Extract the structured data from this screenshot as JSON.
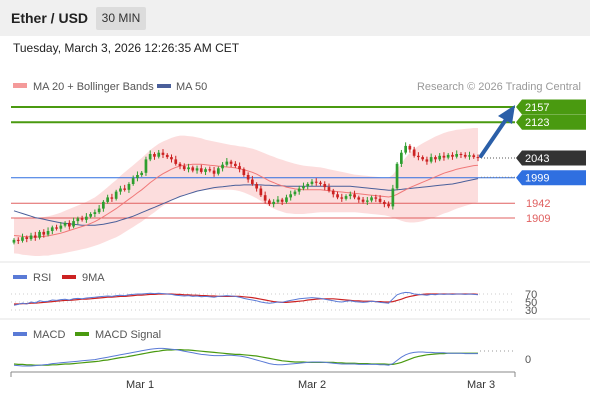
{
  "header": {
    "title": "Ether / USD",
    "timeframe": "30 MIN"
  },
  "datetime": "Tuesday, March 3, 2026 12:26:35 AM CET",
  "legend": {
    "ma20": "MA 20 + Bollinger Bands",
    "ma50": "MA 50",
    "copyright": "Research © 2026 Trading Central"
  },
  "colors": {
    "up": "#2e9e2e",
    "down": "#cc2222",
    "band": "#fbd2d2",
    "ma20": "#f07878",
    "ma50": "#4a5f9a",
    "resistance": "#4a9a10",
    "support_blue": "#2f6fe0",
    "support_red": "#e06060",
    "current": "#333333",
    "arrow": "#2b5fa8"
  },
  "levels": [
    {
      "value": 2157,
      "label": "2157",
      "kind": "resistance"
    },
    {
      "value": 2123,
      "label": "2123",
      "kind": "resistance"
    },
    {
      "value": 2043,
      "label": "2043",
      "kind": "current"
    },
    {
      "value": 1999,
      "label": "1999",
      "kind": "support_blue"
    },
    {
      "value": 1942,
      "label": "1942",
      "kind": "support_red"
    },
    {
      "value": 1909,
      "label": "1909",
      "kind": "support_red"
    }
  ],
  "rsi": {
    "label": "RSI",
    "ma_label": "9MA",
    "levels": [
      "70",
      "50",
      "30"
    ]
  },
  "macd": {
    "label": "MACD",
    "signal_label": "MACD Signal",
    "zero_label": "0"
  },
  "chart_data": {
    "type": "candlestick",
    "x_labels": [
      "Mar 1",
      "Mar 2",
      "Mar 3"
    ],
    "ylim": [
      1840,
      2180
    ],
    "close": [
      1860,
      1858,
      1866,
      1862,
      1870,
      1865,
      1878,
      1872,
      1880,
      1888,
      1885,
      1892,
      1898,
      1890,
      1902,
      1908,
      1905,
      1912,
      1918,
      1922,
      1930,
      1945,
      1955,
      1952,
      1968,
      1975,
      1972,
      1985,
      1998,
      2005,
      2010,
      2040,
      2052,
      2046,
      2055,
      2050,
      2045,
      2040,
      2030,
      2025,
      2018,
      2022,
      2015,
      2020,
      2012,
      2018,
      2015,
      2008,
      2020,
      2028,
      2035,
      2030,
      2025,
      2018,
      2005,
      1995,
      1985,
      1975,
      1960,
      1948,
      1940,
      1945,
      1950,
      1945,
      1955,
      1962,
      1968,
      1975,
      1980,
      1985,
      1990,
      1988,
      1985,
      1978,
      1970,
      1962,
      1955,
      1952,
      1958,
      1962,
      1955,
      1950,
      1945,
      1948,
      1955,
      1952,
      1945,
      1940,
      1935,
      1975,
      2030,
      2055,
      2070,
      2062,
      2048,
      2045,
      2040,
      2035,
      2045,
      2040,
      2048,
      2044,
      2050,
      2046,
      2052,
      2050,
      2046,
      2049,
      2045,
      2043
    ],
    "ma20": [
      1870,
      1869,
      1868,
      1867,
      1867,
      1866,
      1867,
      1868,
      1869,
      1871,
      1873,
      1875,
      1878,
      1881,
      1884,
      1887,
      1890,
      1893,
      1897,
      1901,
      1906,
      1912,
      1918,
      1924,
      1930,
      1937,
      1944,
      1951,
      1958,
      1965,
      1972,
      1980,
      1988,
      1995,
      2002,
      2008,
      2013,
      2018,
      2022,
      2025,
      2027,
      2028,
      2029,
      2029,
      2029,
      2028,
      2027,
      2026,
      2025,
      2024,
      2023,
      2022,
      2021,
      2019,
      2017,
      2014,
      2011,
      2007,
      2002,
      1997,
      1992,
      1988,
      1984,
      1981,
      1978,
      1976,
      1974,
      1973,
      1972,
      1972,
      1972,
      1972,
      1972,
      1971,
      1970,
      1969,
      1968,
      1967,
      1966,
      1965,
      1964,
      1963,
      1962,
      1961,
      1960,
      1959,
      1958,
      1957,
      1956,
      1958,
      1962,
      1967,
      1972,
      1977,
      1981,
      1985,
      1989,
      1993,
      1997,
      2001,
      2005,
      2009,
      2012,
      2015,
      2018,
      2020,
      2022,
      2024,
      2026,
      2027
    ],
    "ma50": [
      1925,
      1922,
      1919,
      1916,
      1913,
      1910,
      1908,
      1906,
      1904,
      1902,
      1900,
      1898,
      1897,
      1896,
      1895,
      1894,
      1893,
      1893,
      1893,
      1893,
      1894,
      1895,
      1897,
      1899,
      1901,
      1904,
      1907,
      1910,
      1913,
      1917,
      1921,
      1925,
      1929,
      1933,
      1937,
      1941,
      1945,
      1949,
      1953,
      1957,
      1960,
      1963,
      1966,
      1969,
      1971,
      1973,
      1975,
      1977,
      1978,
      1979,
      1980,
      1981,
      1982,
      1982,
      1983,
      1983,
      1983,
      1983,
      1983,
      1982,
      1982,
      1981,
      1981,
      1981,
      1980,
      1980,
      1980,
      1980,
      1980,
      1980,
      1980,
      1980,
      1980,
      1980,
      1980,
      1980,
      1980,
      1980,
      1980,
      1980,
      1979,
      1978,
      1977,
      1976,
      1975,
      1974,
      1973,
      1972,
      1971,
      1971,
      1972,
      1973,
      1974,
      1975,
      1976,
      1977,
      1978,
      1979,
      1980,
      1981,
      1982,
      1983,
      1984,
      1985,
      1987,
      1989,
      1991,
      1993,
      1995,
      1997
    ],
    "bb_width": [
      40,
      40,
      41,
      41,
      42,
      42,
      43,
      43,
      44,
      44,
      45,
      46,
      47,
      48,
      49,
      50,
      51,
      52,
      53,
      54,
      56,
      58,
      60,
      62,
      64,
      66,
      67,
      68,
      69,
      70,
      71,
      72,
      73,
      73,
      73,
      72,
      71,
      70,
      69,
      68,
      66,
      64,
      62,
      60,
      58,
      56,
      55,
      54,
      53,
      52,
      51,
      50,
      50,
      50,
      51,
      52,
      53,
      54,
      55,
      56,
      57,
      58,
      58,
      58,
      58,
      57,
      56,
      55,
      54,
      53,
      52,
      51,
      50,
      49,
      48,
      47,
      46,
      45,
      44,
      43,
      42,
      42,
      42,
      42,
      42,
      42,
      42,
      42,
      43,
      48,
      56,
      64,
      72,
      78,
      82,
      85,
      87,
      88,
      89,
      90,
      90,
      90,
      90,
      89,
      88,
      87,
      86,
      85,
      84,
      83
    ],
    "rsi": [
      42,
      44,
      47,
      45,
      50,
      48,
      53,
      51,
      52,
      55,
      54,
      56,
      57,
      55,
      58,
      59,
      58,
      60,
      61,
      62,
      63,
      64,
      65,
      64,
      66,
      67,
      66,
      68,
      69,
      70,
      70,
      71,
      72,
      71,
      72,
      71,
      70,
      69,
      67,
      66,
      65,
      66,
      64,
      65,
      63,
      64,
      63,
      62,
      64,
      65,
      66,
      65,
      64,
      62,
      59,
      57,
      55,
      53,
      50,
      48,
      47,
      48,
      50,
      49,
      52,
      54,
      56,
      58,
      59,
      60,
      61,
      60,
      59,
      57,
      55,
      53,
      51,
      50,
      52,
      53,
      51,
      50,
      49,
      50,
      52,
      51,
      49,
      48,
      47,
      58,
      68,
      72,
      74,
      73,
      70,
      69,
      68,
      67,
      69,
      68,
      70,
      69,
      70,
      69,
      70,
      70,
      69,
      70,
      69,
      68
    ],
    "rsi_ma": [
      45,
      45,
      46,
      46,
      47,
      47,
      48,
      49,
      50,
      51,
      52,
      53,
      54,
      54,
      55,
      56,
      57,
      57,
      58,
      59,
      60,
      61,
      62,
      62,
      63,
      64,
      64,
      65,
      66,
      67,
      67,
      68,
      69,
      69,
      70,
      70,
      70,
      70,
      69,
      69,
      68,
      68,
      67,
      67,
      66,
      66,
      65,
      65,
      64,
      64,
      64,
      64,
      64,
      64,
      63,
      62,
      61,
      59,
      57,
      55,
      53,
      51,
      50,
      49,
      49,
      50,
      51,
      52,
      53,
      55,
      56,
      57,
      58,
      58,
      58,
      58,
      57,
      56,
      55,
      54,
      53,
      53,
      52,
      52,
      52,
      51,
      51,
      50,
      50,
      51,
      54,
      57,
      61,
      64,
      66,
      68,
      69,
      70,
      70,
      70,
      70,
      70,
      70,
      70,
      70,
      70,
      70,
      70,
      70,
      69
    ],
    "macd": [
      -8,
      -9,
      -10,
      -10,
      -10,
      -9,
      -8,
      -7,
      -6,
      -4,
      -3,
      -2,
      -1,
      0,
      1,
      2,
      3,
      4,
      5,
      6,
      8,
      10,
      12,
      14,
      16,
      18,
      20,
      22,
      24,
      26,
      28,
      30,
      32,
      33,
      34,
      34,
      33,
      32,
      31,
      29,
      27,
      25,
      23,
      21,
      19,
      18,
      17,
      16,
      16,
      16,
      17,
      17,
      16,
      15,
      13,
      11,
      8,
      5,
      2,
      -1,
      -4,
      -6,
      -7,
      -7,
      -6,
      -5,
      -4,
      -3,
      -2,
      -1,
      0,
      0,
      0,
      -1,
      -2,
      -3,
      -4,
      -5,
      -5,
      -5,
      -5,
      -6,
      -6,
      -6,
      -6,
      -6,
      -7,
      -7,
      -8,
      -4,
      4,
      12,
      18,
      22,
      24,
      25,
      25,
      24,
      24,
      23,
      23,
      23,
      22,
      22,
      22,
      22,
      21,
      21,
      21,
      21
    ],
    "macd_signal": [
      -5,
      -6,
      -6,
      -7,
      -7,
      -8,
      -8,
      -8,
      -8,
      -7,
      -7,
      -6,
      -5,
      -5,
      -4,
      -3,
      -2,
      -1,
      0,
      1,
      2,
      4,
      5,
      7,
      9,
      11,
      12,
      14,
      16,
      18,
      20,
      22,
      24,
      26,
      27,
      29,
      30,
      30,
      31,
      31,
      30,
      30,
      29,
      28,
      27,
      26,
      25,
      24,
      23,
      22,
      21,
      20,
      19,
      19,
      18,
      17,
      16,
      15,
      13,
      11,
      9,
      7,
      5,
      3,
      2,
      1,
      0,
      0,
      0,
      -1,
      -1,
      -1,
      -1,
      -1,
      -1,
      -1,
      -2,
      -2,
      -3,
      -3,
      -3,
      -4,
      -4,
      -4,
      -5,
      -5,
      -5,
      -5,
      -6,
      -6,
      -4,
      -1,
      3,
      7,
      11,
      14,
      16,
      18,
      19,
      20,
      21,
      21,
      22,
      22,
      22,
      22,
      22,
      22,
      22,
      22
    ]
  }
}
